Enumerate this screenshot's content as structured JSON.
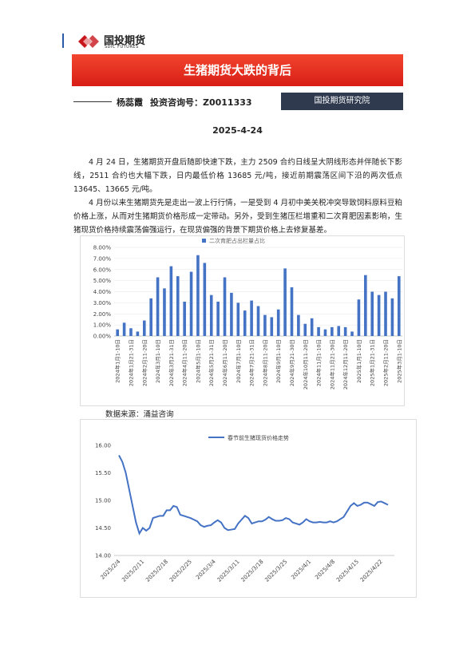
{
  "header": {
    "logo_cn": "国投期货",
    "logo_en": "SDIC FUTURES"
  },
  "title": "生猪期货大跌的背后",
  "author": {
    "name": "杨蕊霞",
    "license": "投资咨询号：Z0011333",
    "org": "国投期货研究院"
  },
  "date": "2025-4-24",
  "paragraphs": [
    "4 月 24 日，生猪期货开盘后随即快速下跌，主力 2509 合约日线呈大阴线形态并伴随长下影线，2511 合约也大幅下跌，日内最低价格 13685 元/吨，接近前期震荡区间下沿的两次低点 13645、13665 元/吨。",
    "4 月份以来生猪期货先是走出一波上行行情，一是受到 4 月初中美关税冲突导致饲料原料豆粕价格上涨，从而对生猪期货价格形成一定带动。另外，受到生猪压栏增重和二次育肥因素影响，生猪现货价格持续震荡偏强运行，在现货偏强的背景下期货价格上去修复基差。"
  ],
  "chart_data": [
    {
      "type": "bar",
      "categories": [
        "2024年1月1-10日",
        null,
        "2024年1月21-31日",
        null,
        "2024年2月11-20日",
        null,
        "2024年3月1-10日",
        null,
        "2024年3月21-31日",
        null,
        "2024年4月11-20日",
        null,
        "2024年5月1-10日",
        null,
        "2024年5月21-31日",
        null,
        "2024年6月11-20日",
        null,
        "2024年7月1-10日",
        null,
        "2024年7月21-31日",
        null,
        "2024年8月11-20日",
        null,
        "2024年9月1-10日",
        null,
        "2024年9月21-30日",
        null,
        "2024年10月11-20日",
        null,
        "2024年11月1-10日",
        null,
        "2024年11月21-30日",
        null,
        "2024年12月11-20日",
        null,
        "2025年1月1-10日",
        null,
        "2025年1月21-31日",
        null,
        "2025年2月11-20日",
        null,
        "2025年3月1-10日"
      ],
      "series": [
        {
          "name": "二次育肥占出栏量占比",
          "color": "#4472c4",
          "values": [
            0.6,
            1.2,
            0.7,
            0.4,
            1.4,
            3.4,
            5.3,
            4.3,
            6.3,
            5.4,
            3.1,
            5.8,
            7.3,
            6.6,
            3.7,
            3.1,
            5.3,
            3.9,
            3.0,
            2.3,
            3.2,
            2.7,
            1.9,
            1.7,
            2.4,
            6.1,
            4.4,
            1.9,
            1.1,
            1.6,
            0.8,
            0.6,
            0.8,
            0.9,
            0.8,
            0.4,
            3.3,
            5.5,
            4.0,
            3.7,
            4.0,
            3.4,
            5.4
          ]
        }
      ],
      "ylim": [
        0,
        8
      ],
      "yticks": [
        {
          "value": 0,
          "label": "0.00%"
        },
        {
          "value": 1,
          "label": "1.00%"
        },
        {
          "value": 2,
          "label": "2.00%"
        },
        {
          "value": 3,
          "label": "3.00%"
        },
        {
          "value": 4,
          "label": "4.00%"
        },
        {
          "value": 5,
          "label": "5.00%"
        },
        {
          "value": 6,
          "label": "6.00%"
        },
        {
          "value": 7,
          "label": "7.00%"
        },
        {
          "value": 8,
          "label": "8.00%"
        }
      ],
      "legend": "top"
    },
    {
      "type": "line",
      "categories": [
        "2025/2/4",
        null,
        null,
        null,
        null,
        null,
        null,
        "2025/2/11",
        null,
        null,
        null,
        null,
        null,
        null,
        "2025/2/18",
        null,
        null,
        null,
        null,
        null,
        null,
        "2025/2/25",
        null,
        null,
        null,
        null,
        null,
        null,
        "2025/3/4",
        null,
        null,
        null,
        null,
        null,
        null,
        "2025/3/11",
        null,
        null,
        null,
        null,
        null,
        null,
        "2025/3/18",
        null,
        null,
        null,
        null,
        null,
        null,
        "2025/3/25",
        null,
        null,
        null,
        null,
        null,
        null,
        "2025/4/1",
        null,
        null,
        null,
        null,
        null,
        null,
        "2025/4/8",
        null,
        null,
        null,
        null,
        null,
        null,
        "2025/4/15",
        null,
        null,
        null,
        null,
        null,
        null,
        "2025/4/22",
        null,
        null
      ],
      "series": [
        {
          "name": "春节前生猪现货价格走势",
          "color": "#4472c4",
          "values": [
            15.82,
            15.7,
            15.5,
            15.2,
            14.9,
            14.6,
            14.4,
            14.5,
            14.45,
            14.5,
            14.68,
            14.7,
            14.72,
            14.72,
            14.82,
            14.82,
            14.9,
            14.88,
            14.74,
            14.72,
            14.7,
            14.68,
            14.65,
            14.62,
            14.55,
            14.52,
            14.54,
            14.55,
            14.6,
            14.64,
            14.6,
            14.5,
            14.46,
            14.47,
            14.48,
            14.58,
            14.65,
            14.72,
            14.68,
            14.58,
            14.6,
            14.62,
            14.62,
            14.65,
            14.7,
            14.66,
            14.63,
            14.63,
            14.64,
            14.68,
            14.66,
            14.6,
            14.58,
            14.56,
            14.6,
            14.66,
            14.62,
            14.6,
            14.6,
            14.61,
            14.6,
            14.6,
            14.62,
            14.6,
            14.62,
            14.66,
            14.7,
            14.8,
            14.9,
            14.95,
            14.9,
            14.92,
            14.96,
            14.96,
            14.93,
            14.9,
            14.97,
            14.98,
            14.95,
            14.92
          ]
        }
      ],
      "ylim": [
        14,
        16
      ],
      "yticks": [
        {
          "value": 14,
          "label": "14.00"
        },
        {
          "value": 14.5,
          "label": "14.50"
        },
        {
          "value": 15,
          "label": "15.00"
        },
        {
          "value": 15.5,
          "label": "15.50"
        },
        {
          "value": 16,
          "label": "16.00"
        }
      ],
      "legend": "top"
    }
  ],
  "source": "数据来源：涌益咨询"
}
